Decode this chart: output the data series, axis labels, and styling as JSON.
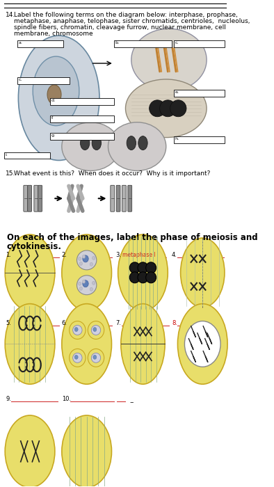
{
  "bg_color": "#ffffff",
  "font_size_body": 6.5,
  "font_size_label": 6.0,
  "font_size_bold": 8.5,
  "q14_number": "14.",
  "q14_text": "Label the following terms on the diagram below: interphase, prophase,",
  "q14_line2": "metaphase, anaphase, telophase, sister chromatids, centrioles,  nucleolus,",
  "q14_line3": "spindle fibers, chromatin, cleavage furrow, nuclear membrane, cell",
  "q14_line4": "membrane, chromosome",
  "q15_number": "15.",
  "q15_text": "What event is this?  When does it occur?  Why is it important?",
  "section_title_line1": "On each of the images, label the phase of meiosis and",
  "section_title_line2": "cytokinesis.",
  "cell_color_yellow": "#e8de6a",
  "cell_border_yellow": "#c8a820",
  "cell_color_blue": "#c8d4e0",
  "cell_border_blue": "#6080a0"
}
